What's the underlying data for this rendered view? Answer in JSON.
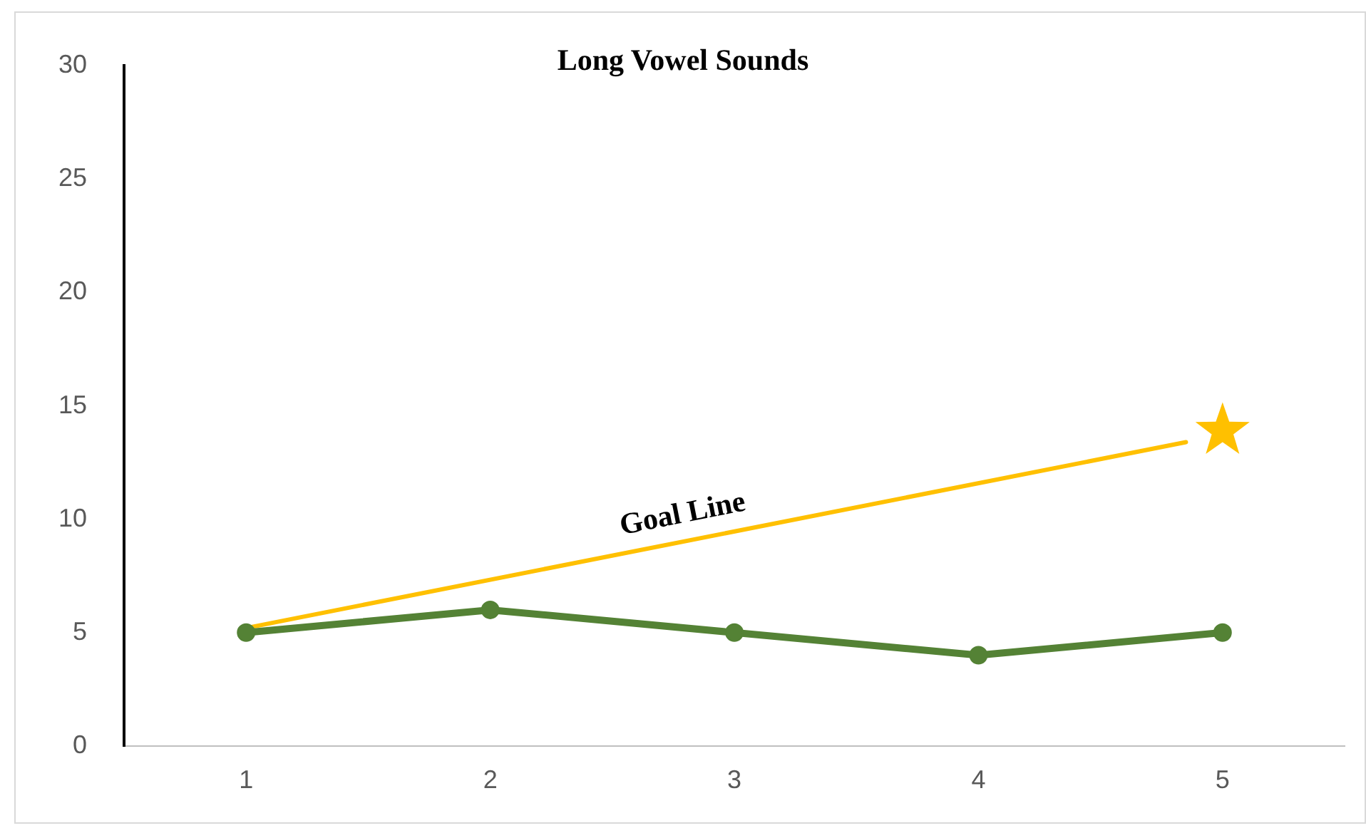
{
  "chart_data": {
    "type": "line",
    "title": "Long Vowel Sounds",
    "x": [
      1,
      2,
      3,
      4,
      5
    ],
    "series": [
      {
        "color": "#548235",
        "values": [
          5,
          6,
          5,
          4,
          5
        ],
        "marker": "circle"
      },
      {
        "name": "Goal Line",
        "color": "#ffc000",
        "x": [
          1,
          4.85
        ],
        "values": [
          5.2,
          13.4
        ],
        "marker": "none"
      },
      {
        "type": "scatter",
        "color": "#ffc000",
        "x": [
          5
        ],
        "values": [
          13.9
        ],
        "marker": "star"
      }
    ],
    "xlim": [
      0.5,
      5.5
    ],
    "xticks": [
      1,
      2,
      3,
      4,
      5
    ],
    "ylim": [
      0,
      30
    ],
    "yticks": [
      0,
      5,
      10,
      15,
      20,
      25,
      30
    ],
    "grid": false,
    "legend": false
  }
}
